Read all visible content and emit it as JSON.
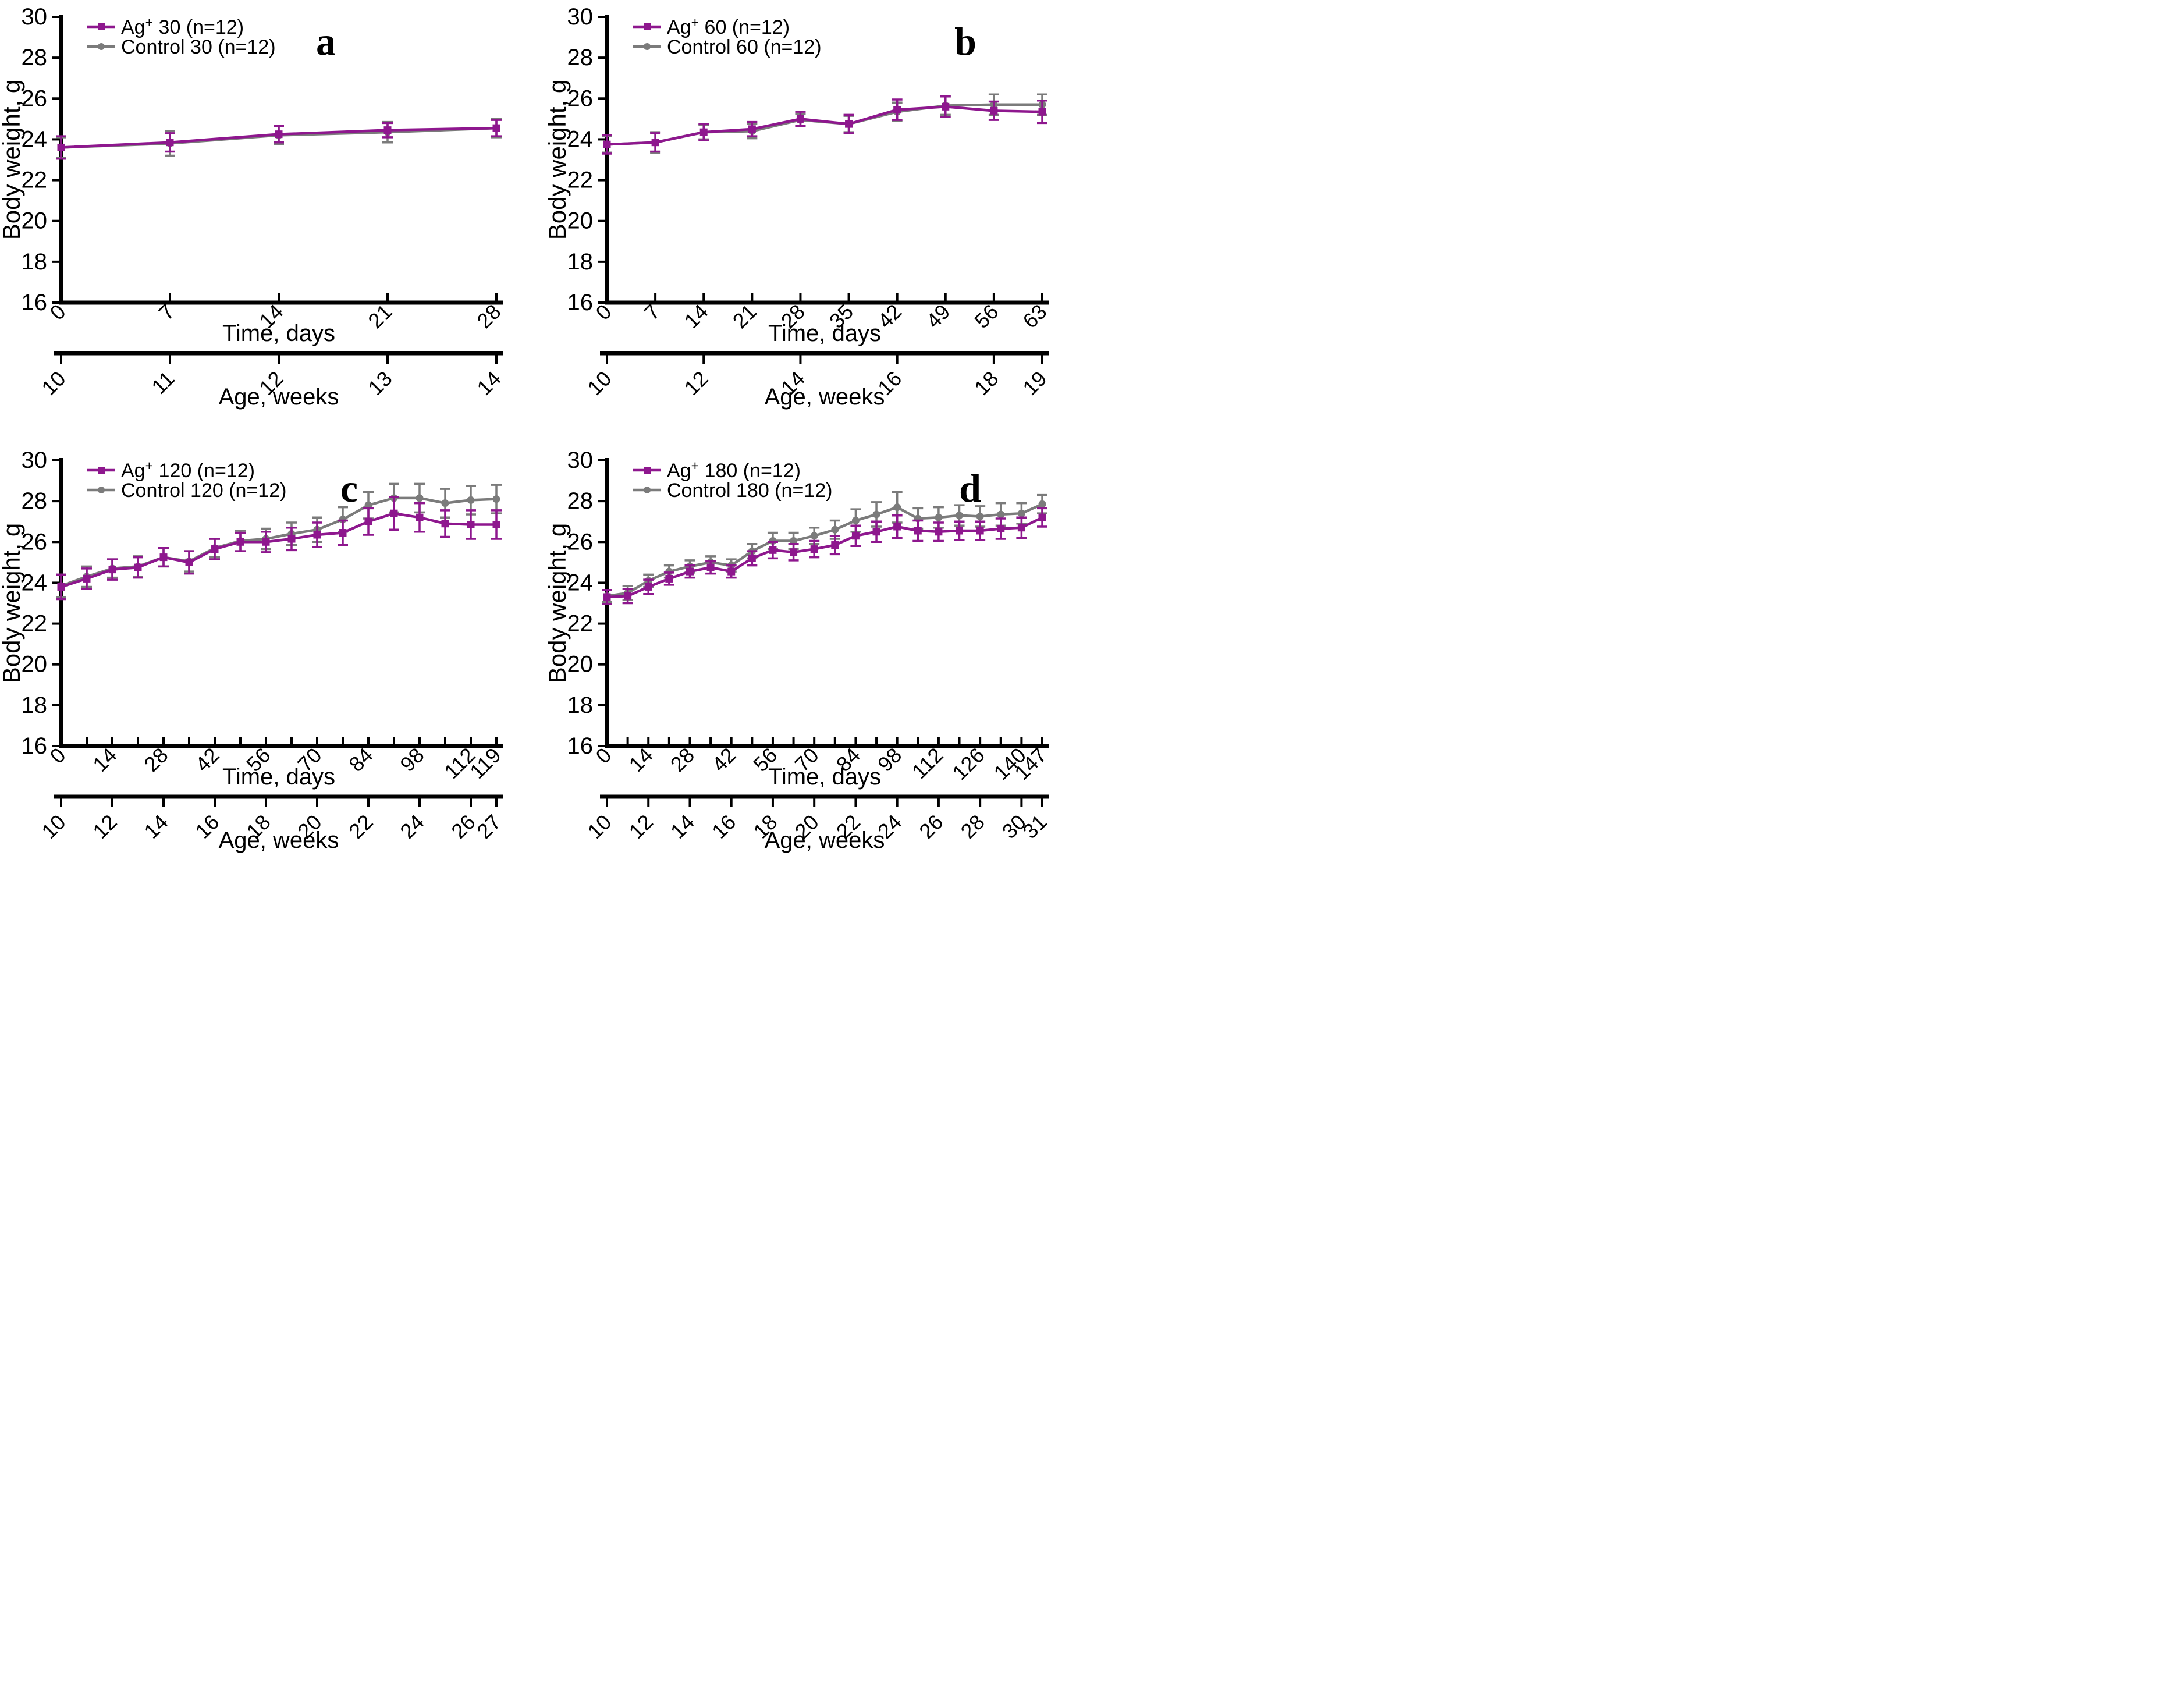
{
  "figure": {
    "background": "#ffffff",
    "ylabel": "Body weight, g",
    "time_axis_label": "Time, days",
    "age_axis_label": "Age, weeks",
    "y_ticks": [
      16,
      18,
      20,
      22,
      24,
      26,
      28,
      30
    ],
    "ylim": [
      16,
      30
    ],
    "series_colors": {
      "treated": "#8e178e",
      "control": "#7b7b7b"
    },
    "axis_color": "#000000"
  },
  "chart_data": [
    {
      "type": "line",
      "panel_letter": "a",
      "ylabel": "Body weight, g",
      "xlabel": "Time, days",
      "x2label": "Age, weeks",
      "ylim": [
        16,
        30
      ],
      "legend_position": "top-left",
      "x_days": [
        0,
        7,
        14,
        21,
        28
      ],
      "time_tick_labels": [
        "0",
        "7",
        "14",
        "21",
        "28"
      ],
      "age_tick_labels": [
        "10",
        "11",
        "12",
        "13",
        "14"
      ],
      "series": [
        {
          "name": "Ag+ 30 (n=12)",
          "role": "treated",
          "marker": "square",
          "values": [
            23.6,
            23.85,
            24.25,
            24.45,
            24.55
          ],
          "errors": [
            0.55,
            0.45,
            0.4,
            0.35,
            0.4
          ]
        },
        {
          "name": "Control 30 (n=12)",
          "role": "control",
          "marker": "circle",
          "values": [
            23.6,
            23.8,
            24.2,
            24.35,
            24.55
          ],
          "errors": [
            0.5,
            0.6,
            0.45,
            0.5,
            0.45
          ]
        }
      ]
    },
    {
      "type": "line",
      "panel_letter": "b",
      "ylabel": "Body weight, g",
      "xlabel": "Time, days",
      "x2label": "Age, weeks",
      "ylim": [
        16,
        30
      ],
      "legend_position": "top-left",
      "x_days": [
        0,
        7,
        14,
        21,
        28,
        35,
        42,
        49,
        56,
        63
      ],
      "time_tick_labels": [
        "0",
        "7",
        "14",
        "21",
        "28",
        "35",
        "42",
        "49",
        "56",
        "63"
      ],
      "age_tick_labels": [
        "10",
        "12",
        "14",
        "16",
        "18",
        "19"
      ],
      "series": [
        {
          "name": "Ag+ 60 (n=12)",
          "role": "treated",
          "marker": "square",
          "values": [
            23.75,
            23.85,
            24.35,
            24.5,
            25.0,
            24.75,
            25.45,
            25.6,
            25.4,
            25.35
          ],
          "errors": [
            0.45,
            0.45,
            0.4,
            0.35,
            0.35,
            0.45,
            0.5,
            0.5,
            0.45,
            0.55
          ]
        },
        {
          "name": "Control 60 (n=12)",
          "role": "control",
          "marker": "circle",
          "values": [
            23.75,
            23.85,
            24.35,
            24.4,
            24.95,
            24.75,
            25.35,
            25.65,
            25.7,
            25.7
          ],
          "errors": [
            0.4,
            0.5,
            0.35,
            0.35,
            0.3,
            0.4,
            0.45,
            0.45,
            0.5,
            0.5
          ]
        }
      ]
    },
    {
      "type": "line",
      "panel_letter": "c",
      "ylabel": "Body weight, g",
      "xlabel": "Time, days",
      "x2label": "Age, weeks",
      "ylim": [
        16,
        30
      ],
      "legend_position": "top-left",
      "x_days": [
        0,
        7,
        14,
        21,
        28,
        35,
        42,
        49,
        56,
        63,
        70,
        77,
        84,
        91,
        98,
        105,
        112,
        119
      ],
      "time_tick_labels": [
        "0",
        "14",
        "28",
        "42",
        "56",
        "70",
        "84",
        "98",
        "112",
        "119"
      ],
      "age_tick_labels": [
        "10",
        "12",
        "14",
        "16",
        "18",
        "20",
        "22",
        "24",
        "26",
        "27"
      ],
      "series": [
        {
          "name": "Ag+ 120 (n=12)",
          "role": "treated",
          "marker": "square",
          "values": [
            23.8,
            24.2,
            24.65,
            24.75,
            25.25,
            25.0,
            25.65,
            26.0,
            26.0,
            26.15,
            26.35,
            26.45,
            27.0,
            27.4,
            27.2,
            26.9,
            26.85,
            26.85
          ],
          "errors": [
            0.6,
            0.5,
            0.5,
            0.5,
            0.45,
            0.55,
            0.5,
            0.45,
            0.5,
            0.55,
            0.6,
            0.6,
            0.65,
            0.8,
            0.7,
            0.65,
            0.7,
            0.7
          ]
        },
        {
          "name": "Control 120 (n=12)",
          "role": "control",
          "marker": "circle",
          "values": [
            23.85,
            24.3,
            24.7,
            24.8,
            25.25,
            25.05,
            25.7,
            26.05,
            26.15,
            26.4,
            26.6,
            27.1,
            27.8,
            28.15,
            28.15,
            27.9,
            28.05,
            28.1
          ],
          "errors": [
            0.55,
            0.5,
            0.45,
            0.5,
            0.45,
            0.5,
            0.45,
            0.5,
            0.5,
            0.55,
            0.6,
            0.6,
            0.65,
            0.7,
            0.7,
            0.7,
            0.7,
            0.7
          ]
        }
      ]
    },
    {
      "type": "line",
      "panel_letter": "d",
      "ylabel": "Body weight, g",
      "xlabel": "Time, days",
      "x2label": "Age, weeks",
      "ylim": [
        16,
        30
      ],
      "legend_position": "top-left",
      "x_days": [
        0,
        7,
        14,
        21,
        28,
        35,
        42,
        49,
        56,
        63,
        70,
        77,
        84,
        91,
        98,
        105,
        112,
        119,
        126,
        133,
        140,
        147
      ],
      "time_tick_labels": [
        "0",
        "14",
        "28",
        "42",
        "56",
        "70",
        "84",
        "98",
        "112",
        "126",
        "140",
        "147"
      ],
      "age_tick_labels": [
        "10",
        "12",
        "14",
        "16",
        "18",
        "20",
        "22",
        "24",
        "26",
        "28",
        "30",
        "31"
      ],
      "series": [
        {
          "name": "Ag+ 180 (n=12)",
          "role": "treated",
          "marker": "square",
          "values": [
            23.3,
            23.35,
            23.8,
            24.2,
            24.55,
            24.75,
            24.55,
            25.2,
            25.6,
            25.5,
            25.65,
            25.85,
            26.3,
            26.5,
            26.75,
            26.55,
            26.5,
            26.55,
            26.55,
            26.65,
            26.7,
            27.2
          ],
          "errors": [
            0.35,
            0.35,
            0.35,
            0.3,
            0.3,
            0.3,
            0.3,
            0.35,
            0.4,
            0.4,
            0.4,
            0.45,
            0.5,
            0.5,
            0.55,
            0.5,
            0.45,
            0.45,
            0.45,
            0.5,
            0.5,
            0.45
          ]
        },
        {
          "name": "Control 180 (n=12)",
          "role": "control",
          "marker": "circle",
          "values": [
            23.35,
            23.5,
            24.1,
            24.55,
            24.8,
            25.0,
            24.85,
            25.55,
            26.05,
            26.05,
            26.3,
            26.6,
            27.05,
            27.35,
            27.7,
            27.15,
            27.2,
            27.3,
            27.25,
            27.35,
            27.4,
            27.85
          ],
          "errors": [
            0.3,
            0.35,
            0.3,
            0.3,
            0.3,
            0.3,
            0.3,
            0.35,
            0.4,
            0.4,
            0.4,
            0.45,
            0.55,
            0.6,
            0.75,
            0.5,
            0.5,
            0.5,
            0.5,
            0.55,
            0.5,
            0.45
          ]
        }
      ]
    }
  ]
}
